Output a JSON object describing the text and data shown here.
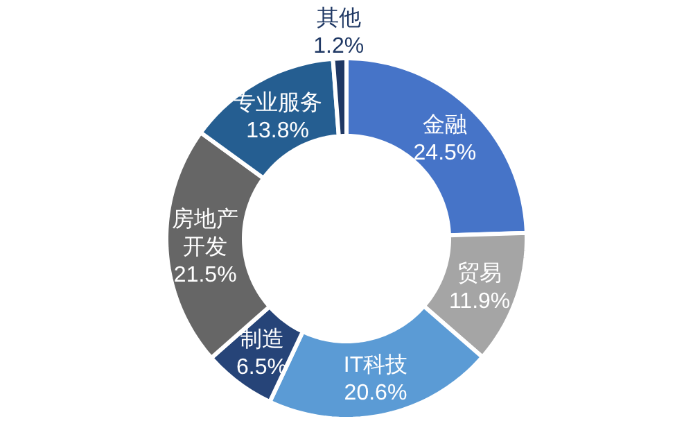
{
  "chart_data": {
    "type": "donut",
    "categories": [
      "金融",
      "贸易",
      "IT科技",
      "制造",
      "房地产开发",
      "专业服务",
      "其他"
    ],
    "values": [
      24.5,
      11.9,
      20.6,
      6.5,
      21.5,
      13.8,
      1.2
    ],
    "value_labels": [
      "24.5%",
      "11.9%",
      "20.6%",
      "6.5%",
      "21.5%",
      "13.8%",
      "1.2%"
    ],
    "colors": [
      "#4674c8",
      "#a5a5a5",
      "#5b9bd5",
      "#264478",
      "#666666",
      "#255e91",
      "#1f3864"
    ]
  }
}
